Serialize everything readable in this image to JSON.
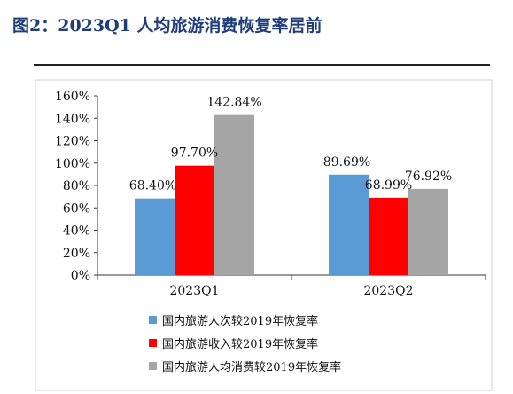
{
  "title": "图2：2023Q1 人均旅游消费恢复率居前",
  "chart_data": {
    "type": "bar",
    "categories": [
      "2023Q1",
      "2023Q2"
    ],
    "series": [
      {
        "name": "国内旅游人次较2019年恢复率",
        "color": "#5b9bd5",
        "values": [
          68.4,
          89.69
        ],
        "labels": [
          "68.40%",
          "89.69%"
        ]
      },
      {
        "name": "国内旅游收入较2019年恢复率",
        "color": "#ff0000",
        "values": [
          97.7,
          68.99
        ],
        "labels": [
          "97.70%",
          "68.99%"
        ]
      },
      {
        "name": "国内旅游人均消费较2019年恢复率",
        "color": "#a5a5a5",
        "values": [
          142.84,
          76.92
        ],
        "labels": [
          "142.84%",
          "76.92%"
        ]
      }
    ],
    "yticks": [
      "0%",
      "20%",
      "40%",
      "60%",
      "80%",
      "100%",
      "120%",
      "140%",
      "160%"
    ],
    "ylim": [
      0,
      160
    ],
    "grid": false,
    "legend_position": "bottom"
  }
}
